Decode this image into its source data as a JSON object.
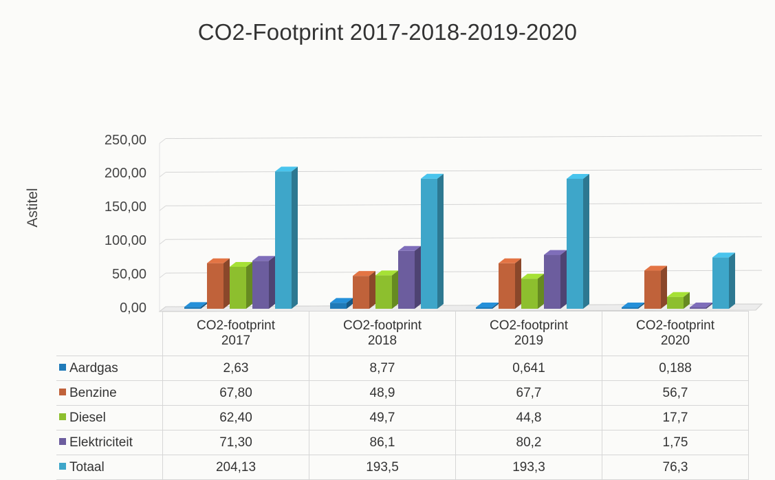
{
  "chart_data": {
    "type": "bar",
    "title": "CO2-Footprint 2017-2018-2019-2020",
    "ylabel": "Astitel",
    "xlabel": "",
    "ylim": [
      0,
      250
    ],
    "yticks": [
      "0,00",
      "50,00",
      "100,00",
      "150,00",
      "200,00",
      "250,00"
    ],
    "ytick_values": [
      0,
      50,
      100,
      150,
      200,
      250
    ],
    "grid": true,
    "legend": "data-table",
    "categories": [
      "CO2-footprint 2017",
      "CO2-footprint 2018",
      "CO2-footprint 2019",
      "CO2-footprint 2020"
    ],
    "category_lines": [
      [
        "CO2-footprint",
        "2017"
      ],
      [
        "CO2-footprint",
        "2018"
      ],
      [
        "CO2-footprint",
        "2019"
      ],
      [
        "CO2-footprint",
        "2020"
      ]
    ],
    "series": [
      {
        "name": "Aardgas",
        "color": "#1f7ab8",
        "values": [
          2.63,
          8.77,
          0.641,
          0.188
        ],
        "labels": [
          "2,63",
          "8,77",
          "0,641",
          "0,188"
        ]
      },
      {
        "name": "Benzine",
        "color": "#c0623a",
        "values": [
          67.8,
          48.9,
          67.7,
          56.7
        ],
        "labels": [
          "67,80",
          "48,9",
          "67,7",
          "56,7"
        ]
      },
      {
        "name": "Diesel",
        "color": "#8dbf2e",
        "values": [
          62.4,
          49.7,
          44.8,
          17.7
        ],
        "labels": [
          "62,40",
          "49,7",
          "44,8",
          "17,7"
        ]
      },
      {
        "name": "Elektriciteit",
        "color": "#6c5d9e",
        "values": [
          71.3,
          86.1,
          80.2,
          1.75
        ],
        "labels": [
          "71,30",
          "86,1",
          "80,2",
          "1,75"
        ]
      },
      {
        "name": "Totaal",
        "color": "#3ea6c9",
        "values": [
          204.13,
          193.5,
          193.3,
          76.3
        ],
        "labels": [
          "204,13",
          "193,5",
          "193,3",
          "76,3"
        ]
      }
    ]
  }
}
